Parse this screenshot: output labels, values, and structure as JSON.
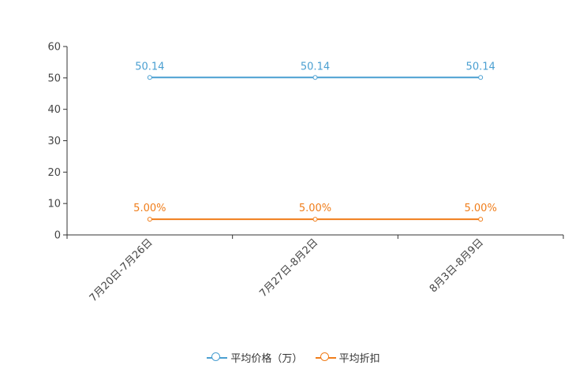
{
  "chart_data": {
    "type": "line",
    "categories": [
      "7月20日-7月26日",
      "7月27日-8月2日",
      "8月3日-8月9日"
    ],
    "series": [
      {
        "name": "平均价格（万）",
        "values": [
          50.14,
          50.14,
          50.14
        ],
        "labels": [
          "50.14",
          "50.14",
          "50.14"
        ],
        "color": "#4a9fd1"
      },
      {
        "name": "平均折扣",
        "values": [
          5.0,
          5.0,
          5.0
        ],
        "labels": [
          "5.00%",
          "5.00%",
          "5.00%"
        ],
        "color": "#f07d1a"
      }
    ],
    "ylim": [
      0,
      60
    ],
    "yticks": [
      "0",
      "10",
      "20",
      "30",
      "40",
      "50",
      "60"
    ],
    "ytick_values": [
      0,
      10,
      20,
      30,
      40,
      50,
      60
    ],
    "legend_position": "bottom-center",
    "axis_color": "#333333"
  }
}
